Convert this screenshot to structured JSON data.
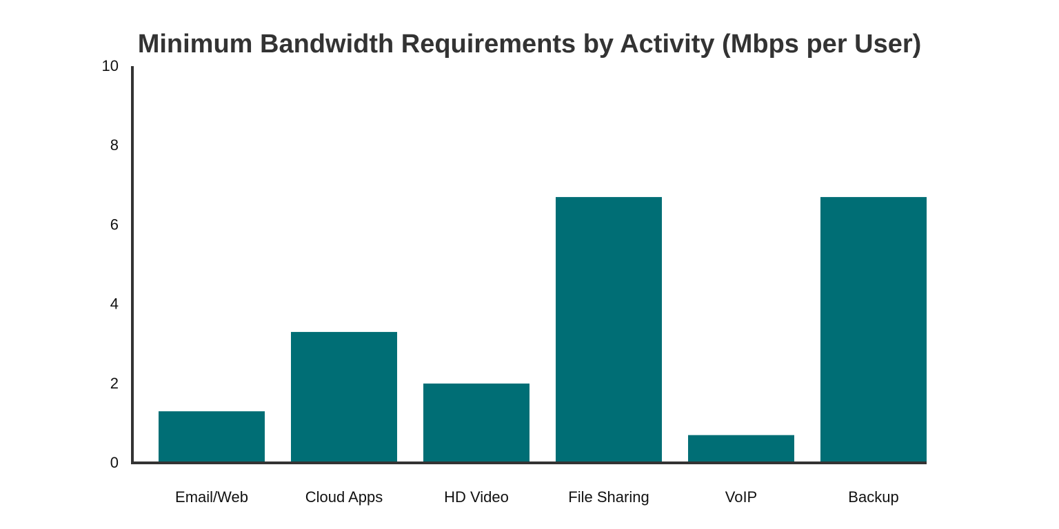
{
  "chart_data": {
    "type": "bar",
    "title": "Minimum Bandwidth Requirements by Activity (Mbps per User)",
    "xlabel": "",
    "ylabel": "",
    "categories": [
      "Email/Web",
      "Cloud Apps",
      "HD Video",
      "File Sharing",
      "VoIP",
      "Backup"
    ],
    "values": [
      1.3,
      3.3,
      2.0,
      6.7,
      0.7,
      6.7
    ],
    "ylim": [
      0,
      10
    ],
    "yticks": [
      "0",
      "2",
      "4",
      "6",
      "8",
      "10"
    ],
    "ytick_values": [
      0,
      2,
      4,
      6,
      8,
      10
    ],
    "grid": false,
    "legend": "none",
    "colors": {
      "bar": "#006e75",
      "axis": "#333333",
      "title": "#333333",
      "text": "#111111"
    }
  }
}
